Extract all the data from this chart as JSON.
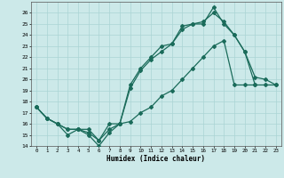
{
  "xlabel": "Humidex (Indice chaleur)",
  "bg_color": "#cce9e9",
  "grid_color": "#aad4d4",
  "line_color": "#1a6b5a",
  "xlim": [
    -0.5,
    23.5
  ],
  "ylim": [
    14,
    27
  ],
  "xticks": [
    0,
    1,
    2,
    3,
    4,
    5,
    6,
    7,
    8,
    9,
    10,
    11,
    12,
    13,
    14,
    15,
    16,
    17,
    18,
    19,
    20,
    21,
    22,
    23
  ],
  "yticks": [
    14,
    15,
    16,
    17,
    18,
    19,
    20,
    21,
    22,
    23,
    24,
    25,
    26
  ],
  "line1_x": [
    0,
    1,
    2,
    3,
    4,
    5,
    6,
    7,
    8,
    9,
    10,
    11,
    12,
    13,
    14,
    15,
    16,
    17,
    18,
    19,
    20,
    21
  ],
  "line1_y": [
    17.5,
    16.5,
    16.0,
    15.0,
    15.5,
    15.0,
    14.0,
    15.2,
    16.0,
    19.5,
    21.0,
    22.0,
    23.0,
    23.2,
    24.5,
    25.0,
    25.0,
    26.5,
    25.0,
    24.0,
    22.5,
    19.5
  ],
  "line2_x": [
    0,
    1,
    2,
    3,
    4,
    5,
    6,
    7,
    8,
    9,
    10,
    11,
    12,
    13,
    14,
    15,
    16,
    17,
    18,
    19,
    20,
    21,
    22,
    23
  ],
  "line2_y": [
    17.5,
    16.5,
    16.0,
    15.5,
    15.5,
    15.2,
    14.5,
    16.0,
    16.0,
    19.2,
    20.8,
    21.8,
    22.5,
    23.2,
    24.8,
    25.0,
    25.2,
    26.0,
    25.2,
    24.0,
    22.5,
    20.2,
    20.0,
    19.5
  ],
  "line3_x": [
    0,
    1,
    2,
    3,
    4,
    5,
    6,
    7,
    8,
    9,
    10,
    11,
    12,
    13,
    14,
    15,
    16,
    17,
    18,
    19,
    20,
    21,
    22,
    23
  ],
  "line3_y": [
    17.5,
    16.5,
    16.0,
    15.5,
    15.5,
    15.5,
    14.5,
    15.5,
    16.0,
    16.2,
    17.0,
    17.5,
    18.5,
    19.0,
    20.0,
    21.0,
    22.0,
    23.0,
    23.5,
    19.5,
    19.5,
    19.5,
    19.5,
    19.5
  ]
}
